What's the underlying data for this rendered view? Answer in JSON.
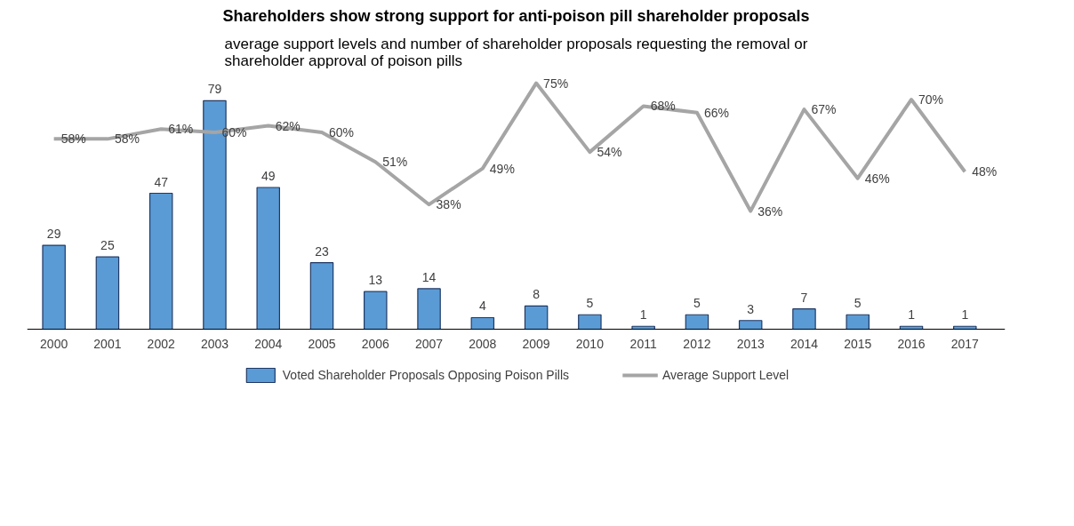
{
  "chart_data": {
    "type": "bar",
    "title": "Shareholders show strong support for anti-poison pill shareholder proposals",
    "subtitle": "average support levels and number of shareholder proposals requesting the removal or shareholder approval of poison pills",
    "categories": [
      "2000",
      "2001",
      "2002",
      "2003",
      "2004",
      "2005",
      "2006",
      "2007",
      "2008",
      "2009",
      "2010",
      "2011",
      "2012",
      "2013",
      "2014",
      "2015",
      "2016",
      "2017"
    ],
    "series": [
      {
        "name": "Voted Shareholder Proposals Opposing Poison Pills",
        "type": "bar",
        "color": "#5b9bd5",
        "values": [
          29,
          25,
          47,
          79,
          49,
          23,
          13,
          14,
          4,
          8,
          5,
          1,
          5,
          3,
          7,
          5,
          1,
          1
        ]
      },
      {
        "name": "Average Support Level",
        "type": "line",
        "axis": "y2",
        "color": "#a5a5a5",
        "value_labels": [
          "58%",
          "58%",
          "61%",
          "60%",
          "62%",
          "60%",
          "51%",
          "38%",
          "49%",
          "75%",
          "54%",
          "68%",
          "66%",
          "36%",
          "67%",
          "46%",
          "70%",
          "48%"
        ],
        "values": [
          58,
          58,
          61,
          60,
          62,
          60,
          51,
          38,
          49,
          75,
          54,
          68,
          66,
          36,
          67,
          46,
          70,
          48
        ]
      }
    ],
    "data_labels": true,
    "tick_labels": "x",
    "legend": "bottom",
    "grid": false
  }
}
